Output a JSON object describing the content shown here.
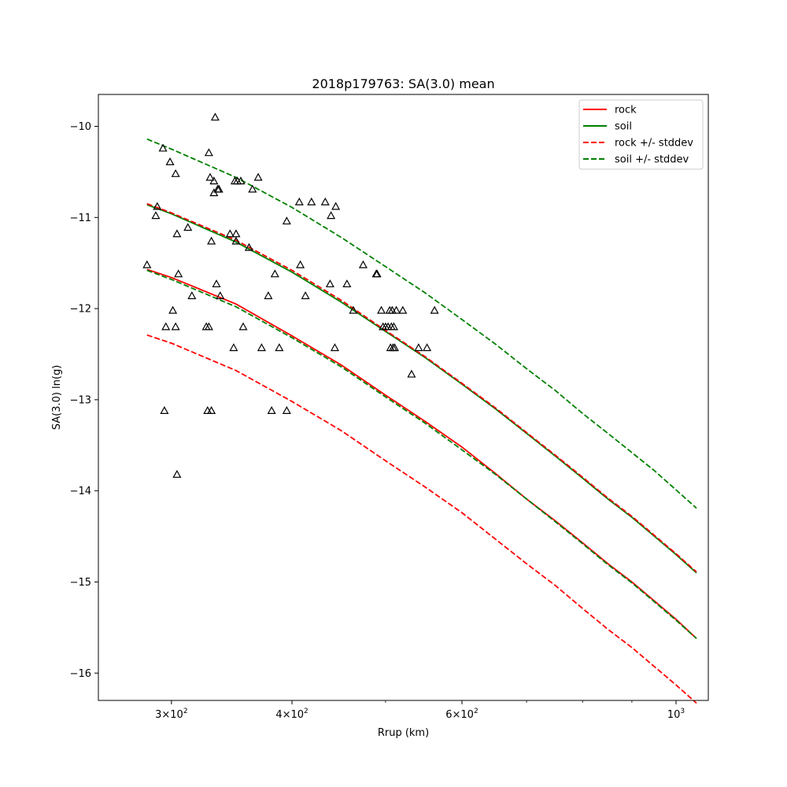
{
  "chart_data": {
    "type": "line",
    "title": "2018p179763: SA(3.0) mean",
    "xlabel": "Rrup (km)",
    "ylabel": "SA(3.0) ln(g)",
    "xscale": "log",
    "xlim": [
      252,
      1080
    ],
    "ylim": [
      -16.3,
      -9.65
    ],
    "yticks": [
      -10,
      -11,
      -12,
      -13,
      -14,
      -15,
      -16
    ],
    "xticks": [
      {
        "value": 300,
        "base": "3×10",
        "exp": "2"
      },
      {
        "value": 400,
        "base": "4×10",
        "exp": "2"
      },
      {
        "value": 600,
        "base": "6×10",
        "exp": "2"
      },
      {
        "value": 1000,
        "base": "10",
        "exp": "3"
      }
    ],
    "x_minor_ticks": [
      500,
      700,
      800,
      900
    ],
    "grid": false,
    "legend_position": "top-right",
    "legend": [
      {
        "label": "rock",
        "color": "#ff0000",
        "dash": false
      },
      {
        "label": "soil",
        "color": "#008000",
        "dash": false
      },
      {
        "label": "rock +/- stddev",
        "color": "#ff0000",
        "dash": true
      },
      {
        "label": "soil +/- stddev",
        "color": "#008000",
        "dash": true
      }
    ],
    "series": [
      {
        "name": "rock",
        "color": "#ff0000",
        "dash": false,
        "x": [
          283,
          300,
          350,
          400,
          450,
          500,
          550,
          600,
          650,
          700,
          750,
          800,
          850,
          900,
          950,
          1000,
          1050
        ],
        "y": [
          -11.57,
          -11.66,
          -11.95,
          -12.3,
          -12.62,
          -12.95,
          -13.24,
          -13.52,
          -13.81,
          -14.09,
          -14.33,
          -14.57,
          -14.8,
          -15.0,
          -15.21,
          -15.41,
          -15.62
        ]
      },
      {
        "name": "soil",
        "color": "#008000",
        "dash": false,
        "x": [
          283,
          300,
          350,
          400,
          450,
          500,
          550,
          600,
          650,
          700,
          750,
          800,
          850,
          900,
          950,
          1000,
          1050
        ],
        "y": [
          -10.86,
          -10.96,
          -11.27,
          -11.6,
          -11.93,
          -12.25,
          -12.54,
          -12.83,
          -13.1,
          -13.37,
          -13.62,
          -13.86,
          -14.09,
          -14.29,
          -14.5,
          -14.7,
          -14.9
        ]
      },
      {
        "name": "rock +/- stddev",
        "color": "#ff0000",
        "dash": true,
        "x": [
          283,
          300,
          350,
          400,
          450,
          500,
          550,
          600,
          650,
          700,
          750,
          800,
          850,
          900,
          950,
          1000,
          1050
        ],
        "y": [
          -10.85,
          -10.95,
          -11.25,
          -11.58,
          -11.91,
          -12.24,
          -12.53,
          -12.82,
          -13.09,
          -13.36,
          -13.61,
          -13.85,
          -14.08,
          -14.28,
          -14.49,
          -14.69,
          -14.89
        ]
      },
      {
        "name": "rock +/- stddev",
        "color": "#ff0000",
        "dash": true,
        "x": [
          283,
          300,
          350,
          400,
          450,
          500,
          550,
          600,
          650,
          700,
          750,
          800,
          850,
          900,
          950,
          1000,
          1050
        ],
        "y": [
          -12.29,
          -12.38,
          -12.68,
          -13.02,
          -13.34,
          -13.67,
          -13.96,
          -14.24,
          -14.53,
          -14.8,
          -15.04,
          -15.29,
          -15.52,
          -15.72,
          -15.93,
          -16.13,
          -16.33
        ]
      },
      {
        "name": "soil +/- stddev",
        "color": "#008000",
        "dash": true,
        "x": [
          283,
          300,
          350,
          400,
          450,
          500,
          550,
          600,
          650,
          700,
          750,
          800,
          850,
          900,
          950,
          1000,
          1050
        ],
        "y": [
          -10.14,
          -10.25,
          -10.56,
          -10.89,
          -11.22,
          -11.54,
          -11.83,
          -12.12,
          -12.39,
          -12.66,
          -12.9,
          -13.15,
          -13.37,
          -13.58,
          -13.78,
          -13.99,
          -14.19
        ]
      },
      {
        "name": "soil +/- stddev",
        "color": "#008000",
        "dash": true,
        "x": [
          283,
          300,
          350,
          400,
          450,
          500,
          550,
          600,
          650,
          700,
          750,
          800,
          850,
          900,
          950,
          1000,
          1050
        ],
        "y": [
          -11.58,
          -11.68,
          -11.98,
          -12.32,
          -12.64,
          -12.97,
          -13.26,
          -13.55,
          -13.82,
          -14.09,
          -14.34,
          -14.58,
          -14.81,
          -15.01,
          -15.22,
          -15.42,
          -15.62
        ]
      }
    ],
    "scatter": {
      "marker": "triangle",
      "color": "#000000",
      "points": [
        [
          283,
          -11.52
        ],
        [
          289,
          -10.98
        ],
        [
          290,
          -10.88
        ],
        [
          294,
          -10.24
        ],
        [
          295,
          -13.12
        ],
        [
          296,
          -12.2
        ],
        [
          299,
          -10.39
        ],
        [
          301,
          -12.02
        ],
        [
          303,
          -10.52
        ],
        [
          303,
          -12.2
        ],
        [
          304,
          -13.82
        ],
        [
          304,
          -11.18
        ],
        [
          305,
          -11.62
        ],
        [
          312,
          -11.11
        ],
        [
          315,
          -11.86
        ],
        [
          326,
          -12.2
        ],
        [
          327,
          -13.12
        ],
        [
          328,
          -12.2
        ],
        [
          328,
          -10.29
        ],
        [
          329,
          -10.56
        ],
        [
          330,
          -13.12
        ],
        [
          330,
          -11.26
        ],
        [
          332,
          -10.6
        ],
        [
          332,
          -10.73
        ],
        [
          333,
          -9.9
        ],
        [
          334,
          -11.73
        ],
        [
          335,
          -10.69
        ],
        [
          336,
          -10.69
        ],
        [
          337,
          -11.86
        ],
        [
          345,
          -11.18
        ],
        [
          348,
          -12.43
        ],
        [
          349,
          -10.6
        ],
        [
          350,
          -11.18
        ],
        [
          350,
          -11.26
        ],
        [
          351,
          -10.6
        ],
        [
          354,
          -10.6
        ],
        [
          356,
          -12.2
        ],
        [
          361,
          -11.33
        ],
        [
          364,
          -10.69
        ],
        [
          369,
          -10.56
        ],
        [
          372,
          -12.43
        ],
        [
          378,
          -11.86
        ],
        [
          381,
          -13.12
        ],
        [
          384,
          -11.62
        ],
        [
          388,
          -12.43
        ],
        [
          395,
          -13.12
        ],
        [
          395,
          -11.04
        ],
        [
          407,
          -10.83
        ],
        [
          408,
          -11.52
        ],
        [
          413,
          -11.86
        ],
        [
          419,
          -10.83
        ],
        [
          433,
          -10.83
        ],
        [
          438,
          -11.73
        ],
        [
          439,
          -10.98
        ],
        [
          443,
          -12.43
        ],
        [
          444,
          -10.88
        ],
        [
          456,
          -11.73
        ],
        [
          463,
          -12.02
        ],
        [
          474,
          -11.52
        ],
        [
          489,
          -11.62
        ],
        [
          490,
          -11.62
        ],
        [
          495,
          -12.02
        ],
        [
          497,
          -12.2
        ],
        [
          500,
          -12.2
        ],
        [
          503,
          -12.2
        ],
        [
          505,
          -12.02
        ],
        [
          506,
          -12.43
        ],
        [
          507,
          -12.2
        ],
        [
          508,
          -12.02
        ],
        [
          509,
          -12.43
        ],
        [
          510,
          -12.2
        ],
        [
          511,
          -12.43
        ],
        [
          513,
          -12.02
        ],
        [
          521,
          -12.02
        ],
        [
          532,
          -12.72
        ],
        [
          541,
          -12.43
        ],
        [
          552,
          -12.43
        ],
        [
          562,
          -12.02
        ]
      ]
    }
  }
}
